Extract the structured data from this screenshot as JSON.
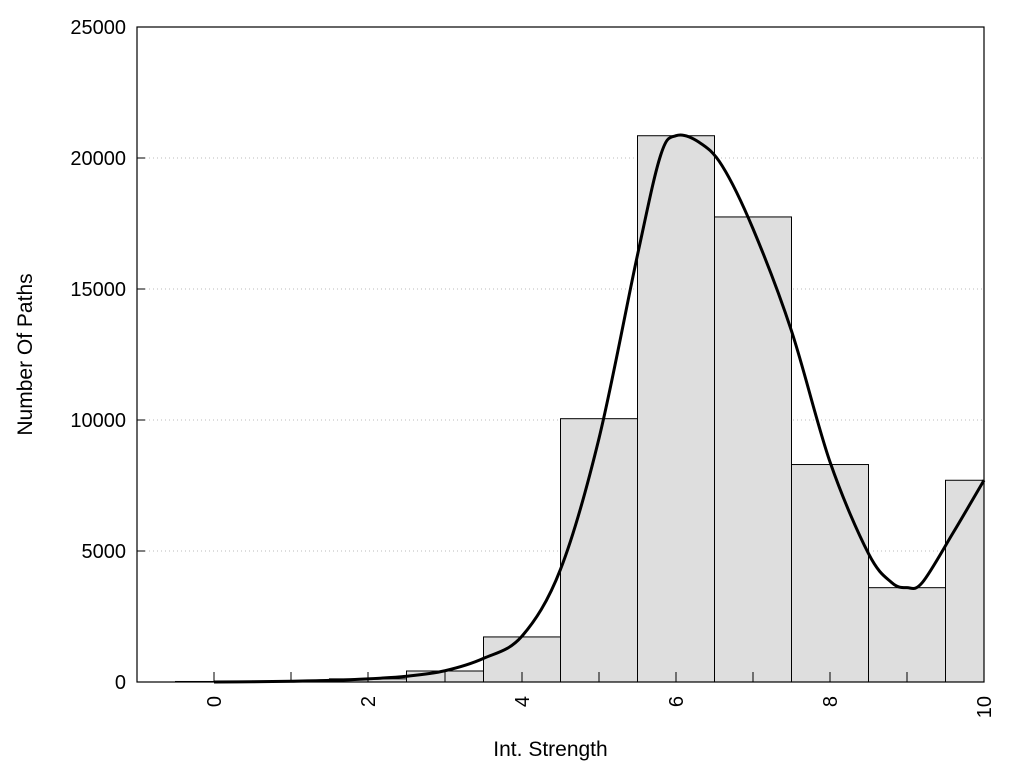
{
  "chart_data": {
    "type": "bar",
    "title": "",
    "xlabel": "Int. Strength",
    "ylabel": "Number Of Paths",
    "xlim": [
      -1,
      10
    ],
    "ylim": [
      0,
      25000
    ],
    "grid": "y-dotted",
    "bin_width": 1,
    "x": [
      0,
      1,
      2,
      3,
      4,
      5,
      6,
      7,
      8,
      9,
      10
    ],
    "values": [
      20,
      40,
      120,
      420,
      1720,
      10050,
      20850,
      17750,
      8300,
      3600,
      7700
    ],
    "curve": {
      "x": [
        0,
        0.5,
        1,
        1.5,
        2,
        2.5,
        3,
        3.5,
        4,
        4.5,
        5,
        5.5,
        5.8,
        6,
        6.3,
        6.6,
        7,
        7.5,
        8,
        8.5,
        8.8,
        9,
        9.2,
        9.6,
        10
      ],
      "y": [
        0,
        10,
        30,
        60,
        120,
        220,
        430,
        900,
        1750,
        4300,
        9300,
        16300,
        20100,
        20850,
        20600,
        19700,
        17300,
        13400,
        8400,
        4900,
        3800,
        3600,
        3800,
        5700,
        7700
      ]
    },
    "x_ticks": [
      "0",
      "2",
      "4",
      "6",
      "8",
      "10"
    ],
    "y_ticks": [
      "0",
      "5000",
      "10000",
      "15000",
      "20000",
      "25000"
    ]
  }
}
